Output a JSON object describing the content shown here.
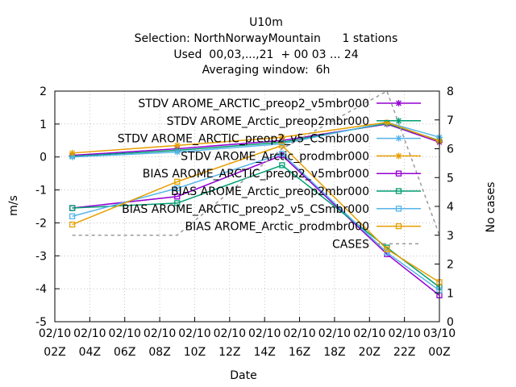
{
  "chart_data": {
    "type": "line",
    "title_lines": [
      "U10m",
      "Selection: NorthNorwayMountain      1 stations",
      "Used  00,03,...,21  + 00 03 ... 24",
      "Averaging window:  6h"
    ],
    "xlabel": "Date",
    "ylabel": "m/s",
    "y2label": "No cases",
    "x_ticks": [
      {
        "x": 0,
        "l1": "02/10",
        "l2": "02Z"
      },
      {
        "x": 2,
        "l1": "02/10",
        "l2": "04Z"
      },
      {
        "x": 4,
        "l1": "02/10",
        "l2": "06Z"
      },
      {
        "x": 6,
        "l1": "02/10",
        "l2": "08Z"
      },
      {
        "x": 8,
        "l1": "02/10",
        "l2": "10Z"
      },
      {
        "x": 10,
        "l1": "02/10",
        "l2": "12Z"
      },
      {
        "x": 12,
        "l1": "02/10",
        "l2": "14Z"
      },
      {
        "x": 14,
        "l1": "02/10",
        "l2": "16Z"
      },
      {
        "x": 16,
        "l1": "02/10",
        "l2": "18Z"
      },
      {
        "x": 18,
        "l1": "02/10",
        "l2": "20Z"
      },
      {
        "x": 20,
        "l1": "02/10",
        "l2": "22Z"
      },
      {
        "x": 22,
        "l1": "03/10",
        "l2": "00Z"
      }
    ],
    "xlim": [
      0,
      22
    ],
    "ylim": [
      -5,
      2
    ],
    "y_ticks": [
      -5,
      -4,
      -3,
      -2,
      -1,
      0,
      1,
      2
    ],
    "y2lim": [
      0,
      8
    ],
    "y2_ticks": [
      0,
      1,
      2,
      3,
      4,
      5,
      6,
      7,
      8
    ],
    "grid": true,
    "legend_position": "top-right",
    "series": [
      {
        "name": "STDV AROME_ARCTIC_preop2_v5mbr000",
        "color": "#9400d3",
        "marker": "star",
        "dash": "",
        "x": [
          1,
          7,
          13,
          19,
          22
        ],
        "y": [
          0.05,
          0.25,
          0.5,
          1.0,
          0.45
        ]
      },
      {
        "name": "STDV AROME_Arctic_preop2mbr000",
        "color": "#009e73",
        "marker": "star",
        "dash": "",
        "x": [
          1,
          7,
          13,
          19,
          22
        ],
        "y": [
          0.02,
          0.2,
          0.45,
          1.02,
          0.5
        ]
      },
      {
        "name": "STDV AROME_ARCTIC_preop2_v5_CSmbr000",
        "color": "#56b4e9",
        "marker": "star",
        "dash": "",
        "x": [
          1,
          7,
          13,
          19,
          22
        ],
        "y": [
          0.0,
          0.15,
          0.4,
          1.05,
          0.6
        ]
      },
      {
        "name": "STDV AROME_Arctic_prodmbr000",
        "color": "#e69f00",
        "marker": "star",
        "dash": "",
        "x": [
          1,
          7,
          13,
          19,
          22
        ],
        "y": [
          0.12,
          0.35,
          0.6,
          1.05,
          0.48
        ]
      },
      {
        "name": "BIAS AROME_ARCTIC_preop2_v5mbr000",
        "color": "#9400d3",
        "marker": "square",
        "dash": "",
        "x": [
          1,
          7,
          13,
          19,
          22
        ],
        "y": [
          -1.55,
          -1.2,
          0.05,
          -2.95,
          -4.2
        ]
      },
      {
        "name": "BIAS AROME_Arctic_preop2mbr000",
        "color": "#009e73",
        "marker": "square",
        "dash": "",
        "x": [
          1,
          7,
          13,
          19,
          22
        ],
        "y": [
          -1.55,
          -1.4,
          -0.25,
          -2.75,
          -3.95
        ]
      },
      {
        "name": "BIAS AROME_ARCTIC_preop2_v5_CSmbr000",
        "color": "#56b4e9",
        "marker": "square",
        "dash": "",
        "x": [
          1,
          7,
          13,
          19,
          22
        ],
        "y": [
          -1.8,
          -0.95,
          0.1,
          -2.9,
          -4.05
        ]
      },
      {
        "name": "BIAS AROME_Arctic_prodmbr000",
        "color": "#e69f00",
        "marker": "square",
        "dash": "",
        "x": [
          1,
          7,
          13,
          19,
          22
        ],
        "y": [
          -2.05,
          -0.75,
          0.35,
          -2.8,
          -3.8
        ]
      },
      {
        "name": "CASES",
        "color": "#999999",
        "marker": "none",
        "dash": "4,4",
        "axis": "y2",
        "x": [
          1,
          7,
          13,
          19,
          22
        ],
        "y": [
          3,
          3,
          6,
          8,
          3
        ]
      }
    ]
  }
}
